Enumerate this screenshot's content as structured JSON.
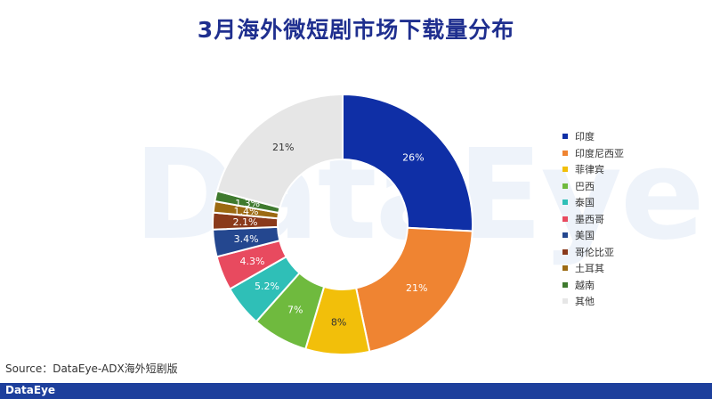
{
  "title": "3月海外微短剧市场下载量分布",
  "watermark": "DataEye",
  "source": "Source：DataEye-ADX海外短剧版",
  "footer_logo": "DataEye",
  "chart_data": {
    "type": "donut",
    "title": "3月海外微短剧市场下载量分布",
    "legend_position": "right",
    "slices": [
      {
        "name": "印度",
        "value": 26,
        "label": "26%",
        "color": "#0f2fa6"
      },
      {
        "name": "印度尼西亚",
        "value": 21,
        "label": "21%",
        "color": "#ef8432"
      },
      {
        "name": "菲律宾",
        "value": 8,
        "label": "8%",
        "color": "#f2bf0a"
      },
      {
        "name": "巴西",
        "value": 7,
        "label": "7%",
        "color": "#6fba3e"
      },
      {
        "name": "泰国",
        "value": 5.2,
        "label": "5.2%",
        "color": "#2fbfb7"
      },
      {
        "name": "墨西哥",
        "value": 4.3,
        "label": "4.3%",
        "color": "#e84a5f"
      },
      {
        "name": "美国",
        "value": 3.4,
        "label": "3.4%",
        "color": "#24478f"
      },
      {
        "name": "哥伦比亚",
        "value": 2.1,
        "label": "2.1%",
        "color": "#8a3a1b"
      },
      {
        "name": "土耳其",
        "value": 1.4,
        "label": "1.4%",
        "color": "#9c6a12"
      },
      {
        "name": "越南",
        "value": 1.3,
        "label": "1.3%",
        "color": "#3f7a2e"
      },
      {
        "name": "其他",
        "value": 21,
        "label": "21%",
        "color": "#e6e6e6"
      }
    ]
  }
}
